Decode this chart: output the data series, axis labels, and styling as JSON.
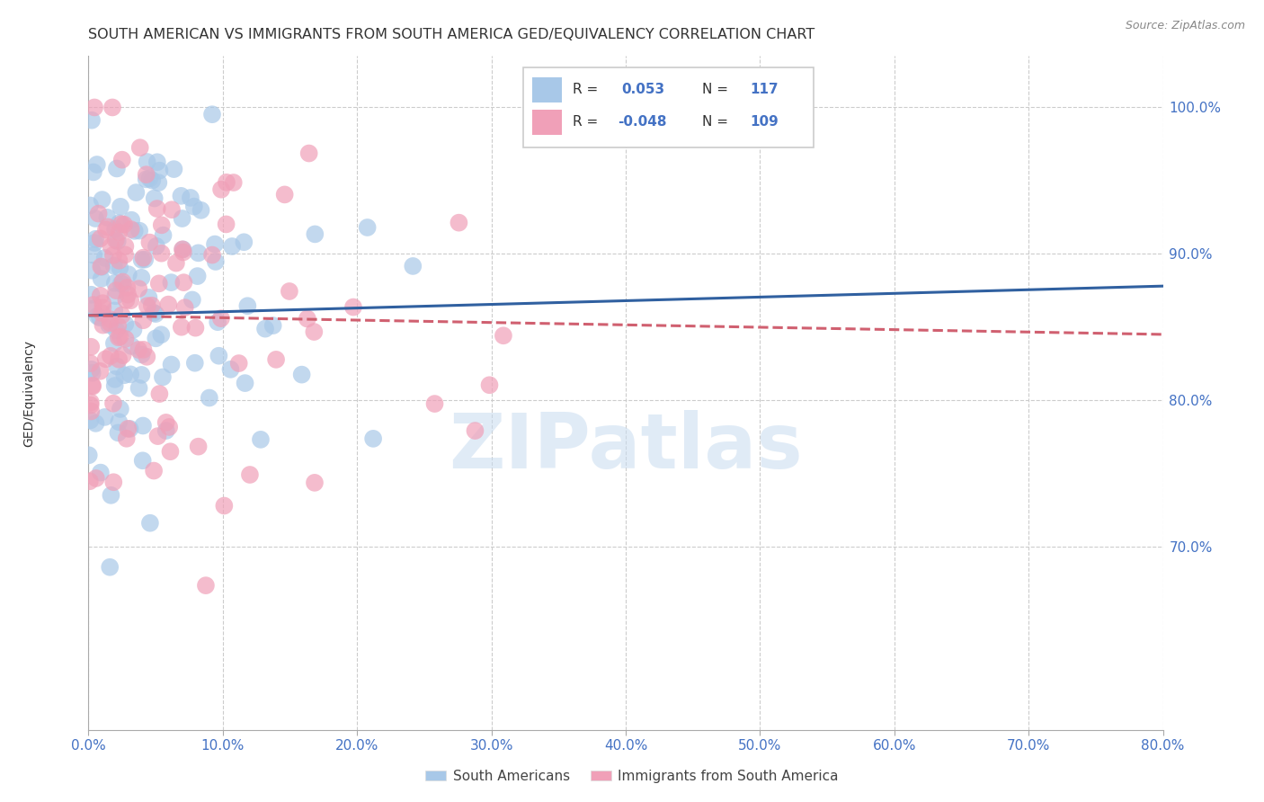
{
  "title": "SOUTH AMERICAN VS IMMIGRANTS FROM SOUTH AMERICA GED/EQUIVALENCY CORRELATION CHART",
  "source": "Source: ZipAtlas.com",
  "ylabel": "GED/Equivalency",
  "ylabel_right_ticks": [
    "100.0%",
    "90.0%",
    "80.0%",
    "70.0%"
  ],
  "ylabel_right_vals": [
    1.0,
    0.9,
    0.8,
    0.7
  ],
  "xmin": 0.0,
  "xmax": 0.8,
  "ymin": 0.575,
  "ymax": 1.035,
  "r1": "0.053",
  "n1": "117",
  "r2": "-0.048",
  "n2": "109",
  "series1_color": "#A8C8E8",
  "series2_color": "#F0A0B8",
  "trendline1_color": "#3060A0",
  "trendline2_color": "#D06070",
  "watermark": "ZIPatlas",
  "background_color": "#FFFFFF",
  "grid_color": "#CCCCCC",
  "title_color": "#333333",
  "axis_color": "#4472C4",
  "legend_label1": "South Americans",
  "legend_label2": "Immigrants from South America"
}
